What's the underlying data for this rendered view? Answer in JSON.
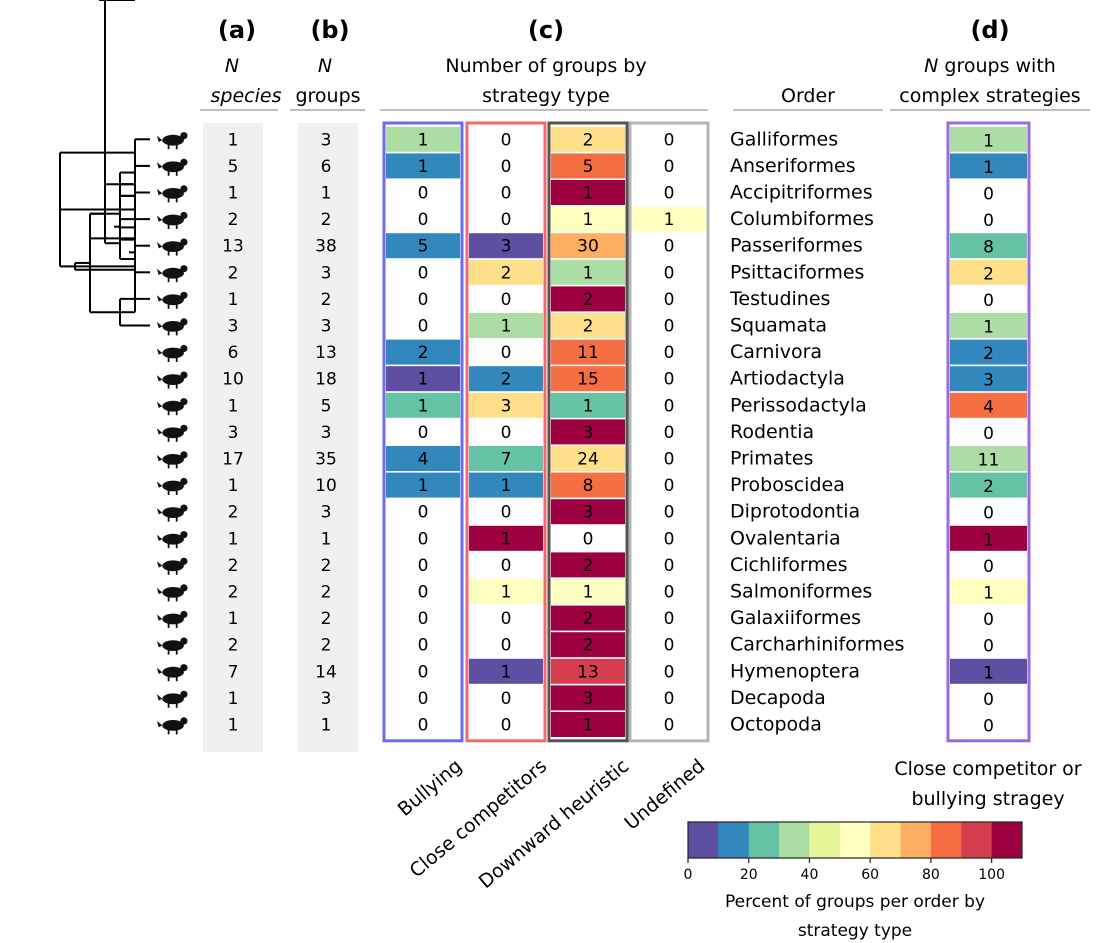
{
  "panels": {
    "a": {
      "label": "(a)",
      "header": [
        "N",
        "species"
      ]
    },
    "b": {
      "label": "(b)",
      "header": [
        "N",
        "groups"
      ]
    },
    "c": {
      "label": "(c)",
      "header": [
        "Number of groups by",
        "strategy type"
      ]
    },
    "order_header": "Order",
    "d": {
      "label": "(d)",
      "header": [
        "N groups with",
        "complex strategies"
      ],
      "caption": [
        "Close competitor or",
        "bullying stragey"
      ]
    }
  },
  "colors": {
    "bullying_box": "#6b6bf0",
    "close_competitors_box": "#f06b6b",
    "downward_box": "#555555",
    "undefined_box": "#b4b4b4",
    "panel_d_box": "#9a6ae0",
    "column_bg": "#f0f0f0",
    "palette": [
      "#5e4fa2",
      "#3288bd",
      "#66c2a5",
      "#abdda4",
      "#e6f598",
      "#ffffbf",
      "#fee08b",
      "#fdae61",
      "#f46d43",
      "#d53e4f",
      "#9e0142"
    ]
  },
  "chart_data": {
    "type": "table",
    "rows": [
      {
        "icon": "bird-icon",
        "order": "Galliformes",
        "n_species": 1,
        "n_groups": 3,
        "bullying": 1,
        "close_competitors": 0,
        "downward_heuristic": 2,
        "undefined": 0,
        "complex": 1
      },
      {
        "icon": "duck-icon",
        "order": "Anseriformes",
        "n_species": 5,
        "n_groups": 6,
        "bullying": 1,
        "close_competitors": 0,
        "downward_heuristic": 5,
        "undefined": 0,
        "complex": 1
      },
      {
        "icon": "raptor-icon",
        "order": "Accipitriformes",
        "n_species": 1,
        "n_groups": 1,
        "bullying": 0,
        "close_competitors": 0,
        "downward_heuristic": 1,
        "undefined": 0,
        "complex": 0
      },
      {
        "icon": "pigeon-icon",
        "order": "Columbiformes",
        "n_species": 2,
        "n_groups": 2,
        "bullying": 0,
        "close_competitors": 0,
        "downward_heuristic": 1,
        "undefined": 1,
        "complex": 0
      },
      {
        "icon": "songbird-icon",
        "order": "Passeriformes",
        "n_species": 13,
        "n_groups": 38,
        "bullying": 5,
        "close_competitors": 3,
        "downward_heuristic": 30,
        "undefined": 0,
        "complex": 8
      },
      {
        "icon": "parrot-icon",
        "order": "Psittaciformes",
        "n_species": 2,
        "n_groups": 3,
        "bullying": 0,
        "close_competitors": 2,
        "downward_heuristic": 1,
        "undefined": 0,
        "complex": 2
      },
      {
        "icon": "tortoise-icon",
        "order": "Testudines",
        "n_species": 1,
        "n_groups": 2,
        "bullying": 0,
        "close_competitors": 0,
        "downward_heuristic": 2,
        "undefined": 0,
        "complex": 0
      },
      {
        "icon": "lizard-icon",
        "order": "Squamata",
        "n_species": 3,
        "n_groups": 3,
        "bullying": 0,
        "close_competitors": 1,
        "downward_heuristic": 2,
        "undefined": 0,
        "complex": 1
      },
      {
        "icon": "hyena-icon",
        "order": "Carnivora",
        "n_species": 6,
        "n_groups": 13,
        "bullying": 2,
        "close_competitors": 0,
        "downward_heuristic": 11,
        "undefined": 0,
        "complex": 2
      },
      {
        "icon": "deer-icon",
        "order": "Artiodactyla",
        "n_species": 10,
        "n_groups": 18,
        "bullying": 1,
        "close_competitors": 2,
        "downward_heuristic": 15,
        "undefined": 0,
        "complex": 3
      },
      {
        "icon": "horse-icon",
        "order": "Perissodactyla",
        "n_species": 1,
        "n_groups": 5,
        "bullying": 1,
        "close_competitors": 3,
        "downward_heuristic": 1,
        "undefined": 0,
        "complex": 4
      },
      {
        "icon": "squirrel-icon",
        "order": "Rodentia",
        "n_species": 3,
        "n_groups": 3,
        "bullying": 0,
        "close_competitors": 0,
        "downward_heuristic": 3,
        "undefined": 0,
        "complex": 0
      },
      {
        "icon": "monkey-icon",
        "order": "Primates",
        "n_species": 17,
        "n_groups": 35,
        "bullying": 4,
        "close_competitors": 7,
        "downward_heuristic": 24,
        "undefined": 0,
        "complex": 11
      },
      {
        "icon": "elephant-icon",
        "order": "Proboscidea",
        "n_species": 1,
        "n_groups": 10,
        "bullying": 1,
        "close_competitors": 1,
        "downward_heuristic": 8,
        "undefined": 0,
        "complex": 2
      },
      {
        "icon": "kangaroo-icon",
        "order": "Diprotodontia",
        "n_species": 2,
        "n_groups": 3,
        "bullying": 0,
        "close_competitors": 0,
        "downward_heuristic": 3,
        "undefined": 0,
        "complex": 0
      },
      {
        "icon": "reef-fish-icon",
        "order": "Ovalentaria",
        "n_species": 1,
        "n_groups": 1,
        "bullying": 0,
        "close_competitors": 1,
        "downward_heuristic": 0,
        "undefined": 0,
        "complex": 1
      },
      {
        "icon": "cichlid-icon",
        "order": "Cichliformes",
        "n_species": 2,
        "n_groups": 2,
        "bullying": 0,
        "close_competitors": 0,
        "downward_heuristic": 2,
        "undefined": 0,
        "complex": 0
      },
      {
        "icon": "salmon-icon",
        "order": "Salmoniformes",
        "n_species": 2,
        "n_groups": 2,
        "bullying": 0,
        "close_competitors": 1,
        "downward_heuristic": 1,
        "undefined": 0,
        "complex": 1
      },
      {
        "icon": "galaxias-icon",
        "order": "Galaxiiformes",
        "n_species": 1,
        "n_groups": 2,
        "bullying": 0,
        "close_competitors": 0,
        "downward_heuristic": 2,
        "undefined": 0,
        "complex": 0
      },
      {
        "icon": "shark-icon",
        "order": "Carcharhiniformes",
        "n_species": 2,
        "n_groups": 2,
        "bullying": 0,
        "close_competitors": 0,
        "downward_heuristic": 2,
        "undefined": 0,
        "complex": 0
      },
      {
        "icon": "ant-icon",
        "order": "Hymenoptera",
        "n_species": 7,
        "n_groups": 14,
        "bullying": 0,
        "close_competitors": 1,
        "downward_heuristic": 13,
        "undefined": 0,
        "complex": 1
      },
      {
        "icon": "crab-icon",
        "order": "Decapoda",
        "n_species": 1,
        "n_groups": 3,
        "bullying": 0,
        "close_competitors": 0,
        "downward_heuristic": 3,
        "undefined": 0,
        "complex": 0
      },
      {
        "icon": "octopus-icon",
        "order": "Octopoda",
        "n_species": 1,
        "n_groups": 1,
        "bullying": 0,
        "close_competitors": 0,
        "downward_heuristic": 1,
        "undefined": 0,
        "complex": 0
      }
    ],
    "strategy_columns": [
      {
        "key": "bullying",
        "label": "Bullying"
      },
      {
        "key": "close_competitors",
        "label": "Close competitors"
      },
      {
        "key": "downward_heuristic",
        "label": "Downward heuristic"
      },
      {
        "key": "undefined",
        "label": "Undefined"
      }
    ],
    "colorbar": {
      "ticks": [
        "0",
        "20",
        "40",
        "60",
        "80",
        "100"
      ],
      "range": [
        0,
        110
      ],
      "step": 10,
      "label": [
        "Percent of groups per order by",
        "strategy type"
      ]
    },
    "tree": {
      "heights": {
        "8": 1,
        "9": 1,
        "10": 2,
        "11": 1,
        "12": 1,
        "13": 2,
        "14": 1,
        "15": 1,
        "16": 2,
        "17": 3,
        "18": 4,
        "19": 5,
        "20": 6,
        "21": 1,
        "22": 2,
        "23": 3,
        "24": 4,
        "25": 1,
        "26": 2,
        "27": 3,
        "28": 4,
        "29": 5,
        "30": 7,
        "31": 8,
        "32": 1,
        "33": 2,
        "34": 9
      },
      "nodes": [
        [
          0,
          1,
          8
        ],
        [
          2,
          8,
          9
        ],
        [
          3,
          9,
          10
        ],
        [
          4,
          5,
          11
        ],
        [
          10,
          11,
          12
        ],
        [
          6,
          7,
          13
        ],
        [
          12,
          13,
          14
        ],
        [
          9,
          10,
          15
        ],
        [
          11,
          12,
          16
        ],
        [
          15,
          16,
          17
        ],
        [
          17,
          13,
          18
        ],
        [
          18,
          14,
          19
        ],
        [
          8,
          19,
          20
        ],
        [
          14,
          20,
          21
        ],
        [
          15,
          16,
          22
        ],
        [
          17,
          22,
          23
        ],
        [
          18,
          23,
          24
        ],
        [
          19,
          24,
          25
        ],
        [
          21,
          22,
          26
        ],
        [
          20,
          32,
          27
        ]
      ]
    }
  }
}
